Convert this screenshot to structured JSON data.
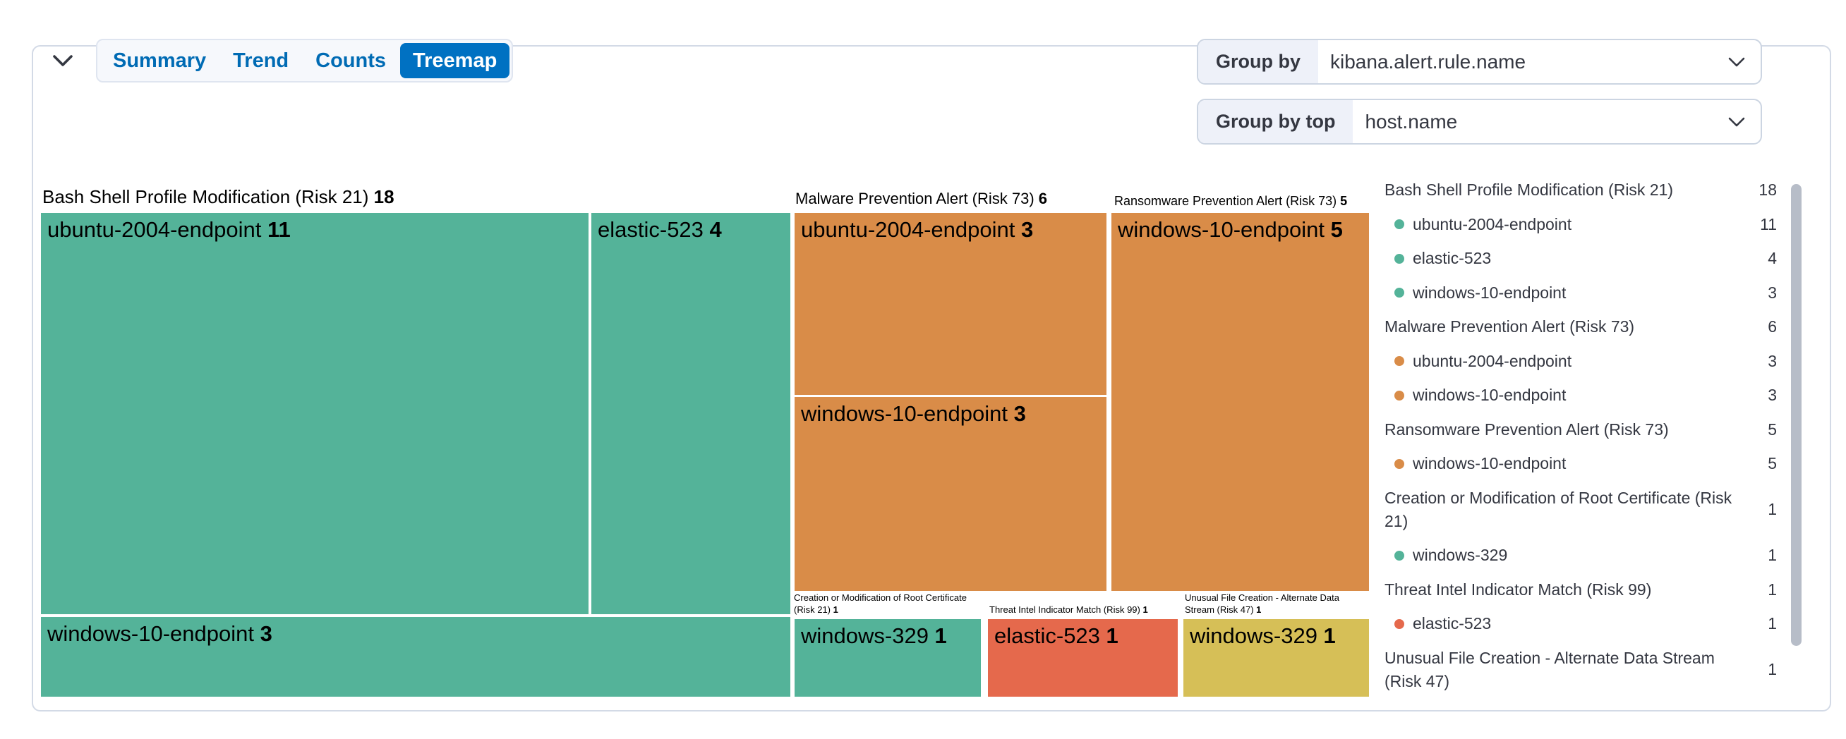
{
  "toolbar": {
    "collapse_icon": "chevron-down-icon",
    "tabs": [
      {
        "label": "Summary",
        "selected": false
      },
      {
        "label": "Trend",
        "selected": false
      },
      {
        "label": "Counts",
        "selected": false
      },
      {
        "label": "Treemap",
        "selected": true
      }
    ]
  },
  "controls": {
    "group_by": {
      "label": "Group by",
      "value": "kibana.alert.rule.name",
      "icon": "chevron-down-icon"
    },
    "group_by_top": {
      "label": "Group by top",
      "value": "host.name",
      "icon": "chevron-down-icon"
    }
  },
  "colors": {
    "green": "#54B399",
    "orange": "#D98C48",
    "red": "#E5694C",
    "yellow": "#D6BF57",
    "primary_blue": "#0071C2",
    "tab_text_blue": "#006BB4",
    "text": "#343741",
    "panel_border": "#d3dae6",
    "scrollbar": "#b7bdc8"
  },
  "chart_data": {
    "type": "treemap",
    "group_by_field": "kibana.alert.rule.name",
    "child_field": "host.name",
    "groups": [
      {
        "label": "Bash Shell Profile Modification (Risk 21)",
        "value": 18,
        "color": "#54B399",
        "children": [
          {
            "name": "ubuntu-2004-endpoint",
            "value": 11
          },
          {
            "name": "elastic-523",
            "value": 4
          },
          {
            "name": "windows-10-endpoint",
            "value": 3
          }
        ]
      },
      {
        "label": "Malware Prevention Alert (Risk 73)",
        "value": 6,
        "color": "#D98C48",
        "children": [
          {
            "name": "ubuntu-2004-endpoint",
            "value": 3
          },
          {
            "name": "windows-10-endpoint",
            "value": 3
          }
        ]
      },
      {
        "label": "Ransomware Prevention Alert (Risk 73)",
        "value": 5,
        "color": "#D98C48",
        "children": [
          {
            "name": "windows-10-endpoint",
            "value": 5
          }
        ]
      },
      {
        "label": "Creation or Modification of Root Certificate (Risk 21)",
        "value": 1,
        "color": "#54B399",
        "children": [
          {
            "name": "windows-329",
            "value": 1
          }
        ]
      },
      {
        "label": "Threat Intel Indicator Match (Risk 99)",
        "value": 1,
        "color": "#E5694C",
        "children": [
          {
            "name": "elastic-523",
            "value": 1
          }
        ]
      },
      {
        "label": "Unusual File Creation - Alternate Data Stream (Risk 47)",
        "value": 1,
        "color": "#D6BF57",
        "children": [
          {
            "name": "windows-329",
            "value": 1
          }
        ]
      }
    ],
    "legend": [
      {
        "kind": "group",
        "label": "Bash Shell Profile Modification (Risk 21)",
        "value": 18
      },
      {
        "kind": "host",
        "label": "ubuntu-2004-endpoint",
        "value": 11,
        "color": "#54B399"
      },
      {
        "kind": "host",
        "label": "elastic-523",
        "value": 4,
        "color": "#54B399"
      },
      {
        "kind": "host",
        "label": "windows-10-endpoint",
        "value": 3,
        "color": "#54B399"
      },
      {
        "kind": "group",
        "label": "Malware Prevention Alert (Risk 73)",
        "value": 6
      },
      {
        "kind": "host",
        "label": "ubuntu-2004-endpoint",
        "value": 3,
        "color": "#D98C48"
      },
      {
        "kind": "host",
        "label": "windows-10-endpoint",
        "value": 3,
        "color": "#D98C48"
      },
      {
        "kind": "group",
        "label": "Ransomware Prevention Alert (Risk 73)",
        "value": 5
      },
      {
        "kind": "host",
        "label": "windows-10-endpoint",
        "value": 5,
        "color": "#D98C48"
      },
      {
        "kind": "group",
        "label": "Creation or Modification of Root Certificate (Risk 21)",
        "value": 1
      },
      {
        "kind": "host",
        "label": "windows-329",
        "value": 1,
        "color": "#54B399"
      },
      {
        "kind": "group",
        "label": "Threat Intel Indicator Match (Risk 99)",
        "value": 1
      },
      {
        "kind": "host",
        "label": "elastic-523",
        "value": 1,
        "color": "#E5694C"
      },
      {
        "kind": "group",
        "label": "Unusual File Creation - Alternate Data Stream (Risk 47)",
        "value": 1
      }
    ],
    "legend_position": "right"
  }
}
